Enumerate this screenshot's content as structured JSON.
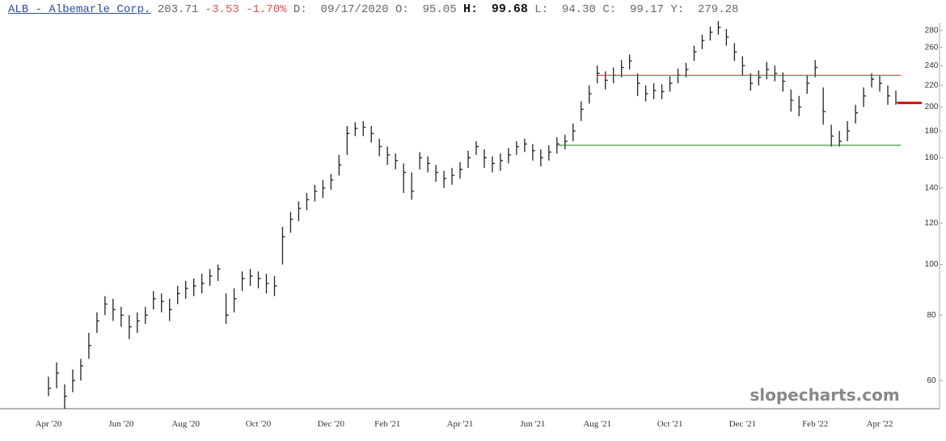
{
  "header": {
    "symbol": "ALB - Albemarle Corp.",
    "last": 203.71,
    "change": -3.53,
    "change_pct": "-1.70%",
    "fields": [
      {
        "label": "D:",
        "value": "09/17/2020"
      },
      {
        "label": "O:",
        "value": "95.05"
      },
      {
        "label": "H:",
        "value": "99.68"
      },
      {
        "label": "L:",
        "value": "94.30"
      },
      {
        "label": "C:",
        "value": "99.17"
      },
      {
        "label": "Y:",
        "value": "279.28"
      }
    ]
  },
  "watermark": "slopecharts.com",
  "chart_data": {
    "type": "ohlc",
    "log_scale": true,
    "color": "#222222",
    "categories": [
      "Apr '20",
      null,
      null,
      null,
      null,
      null,
      null,
      null,
      null,
      "Jun '20",
      null,
      null,
      null,
      null,
      null,
      null,
      null,
      "Aug '20",
      null,
      null,
      null,
      null,
      null,
      null,
      null,
      null,
      "Oct '20",
      null,
      null,
      null,
      null,
      null,
      null,
      null,
      null,
      "Dec '20",
      null,
      null,
      null,
      null,
      null,
      null,
      "Feb '21",
      null,
      null,
      null,
      null,
      null,
      null,
      null,
      null,
      "Apr '21",
      null,
      null,
      null,
      null,
      null,
      null,
      null,
      null,
      "Jun '21",
      null,
      null,
      null,
      null,
      null,
      null,
      null,
      "Aug '21",
      null,
      null,
      null,
      null,
      null,
      null,
      null,
      null,
      "Oct '21",
      null,
      null,
      null,
      null,
      null,
      null,
      null,
      null,
      "Dec '21",
      null,
      null,
      null,
      null,
      null,
      null,
      null,
      null,
      "Feb '22",
      null,
      null,
      null,
      null,
      null,
      null,
      null,
      "Apr '22",
      null,
      null
    ],
    "high": [
      61,
      65,
      59,
      63,
      66,
      74,
      81,
      87,
      86,
      83,
      80,
      81,
      83,
      89,
      88,
      86,
      91,
      93,
      94,
      96,
      98,
      100,
      88,
      90,
      97,
      98,
      97,
      96,
      95,
      118,
      126,
      132,
      137,
      142,
      145,
      149,
      162,
      184,
      187,
      188,
      184,
      174,
      168,
      163,
      156,
      150,
      164,
      161,
      155,
      151,
      153,
      157,
      165,
      172,
      166,
      161,
      163,
      167,
      172,
      174,
      170,
      166,
      169,
      175,
      177,
      186,
      205,
      220,
      240,
      234,
      238,
      246,
      252,
      232,
      220,
      222,
      221,
      229,
      237,
      243,
      262,
      275,
      285,
      292,
      282,
      265,
      250,
      232,
      235,
      244,
      240,
      233,
      216,
      210,
      230,
      246,
      218,
      185,
      180,
      188,
      202,
      218,
      232,
      230,
      220,
      215
    ],
    "low": [
      56,
      58,
      53,
      57,
      60,
      66,
      74,
      80,
      78,
      76,
      72,
      74,
      77,
      82,
      81,
      78,
      84,
      86,
      87,
      88,
      91,
      93,
      77,
      81,
      89,
      91,
      90,
      88,
      87,
      100,
      115,
      121,
      127,
      132,
      134,
      139,
      148,
      162,
      176,
      176,
      171,
      161,
      155,
      152,
      137,
      133,
      152,
      150,
      144,
      140,
      142,
      146,
      153,
      162,
      153,
      150,
      151,
      156,
      162,
      164,
      158,
      154,
      158,
      163,
      166,
      172,
      188,
      203,
      222,
      216,
      222,
      228,
      236,
      210,
      205,
      207,
      207,
      214,
      222,
      228,
      245,
      258,
      268,
      275,
      262,
      245,
      230,
      215,
      220,
      226,
      224,
      214,
      196,
      192,
      212,
      228,
      185,
      168,
      168,
      172,
      186,
      200,
      218,
      214,
      202,
      202
    ],
    "close": [
      58,
      62,
      56,
      60,
      64,
      70,
      78,
      84,
      82,
      80,
      76,
      78,
      80,
      86,
      85,
      82,
      88,
      90,
      91,
      92,
      95,
      98,
      80,
      86,
      94,
      95,
      94,
      92,
      91,
      113,
      122,
      128,
      133,
      138,
      140,
      145,
      155,
      178,
      182,
      183,
      178,
      168,
      162,
      158,
      150,
      138,
      160,
      156,
      150,
      146,
      148,
      152,
      160,
      168,
      160,
      156,
      158,
      162,
      168,
      170,
      165,
      160,
      164,
      170,
      172,
      180,
      198,
      212,
      232,
      225,
      230,
      238,
      245,
      222,
      212,
      215,
      214,
      222,
      230,
      236,
      255,
      268,
      278,
      284,
      272,
      255,
      240,
      222,
      228,
      236,
      232,
      224,
      206,
      200,
      222,
      238,
      196,
      176,
      172,
      180,
      195,
      210,
      226,
      222,
      210,
      204
    ],
    "ylim": [
      53,
      290
    ],
    "yticks": [
      60,
      80,
      100,
      120,
      140,
      160,
      180,
      200,
      220,
      240,
      260,
      280
    ],
    "hlines": [
      {
        "value": 230,
        "color": "#e02020"
      },
      {
        "value": 169,
        "color": "#1a7a1a"
      }
    ],
    "last_marker_color": "#e00000"
  }
}
